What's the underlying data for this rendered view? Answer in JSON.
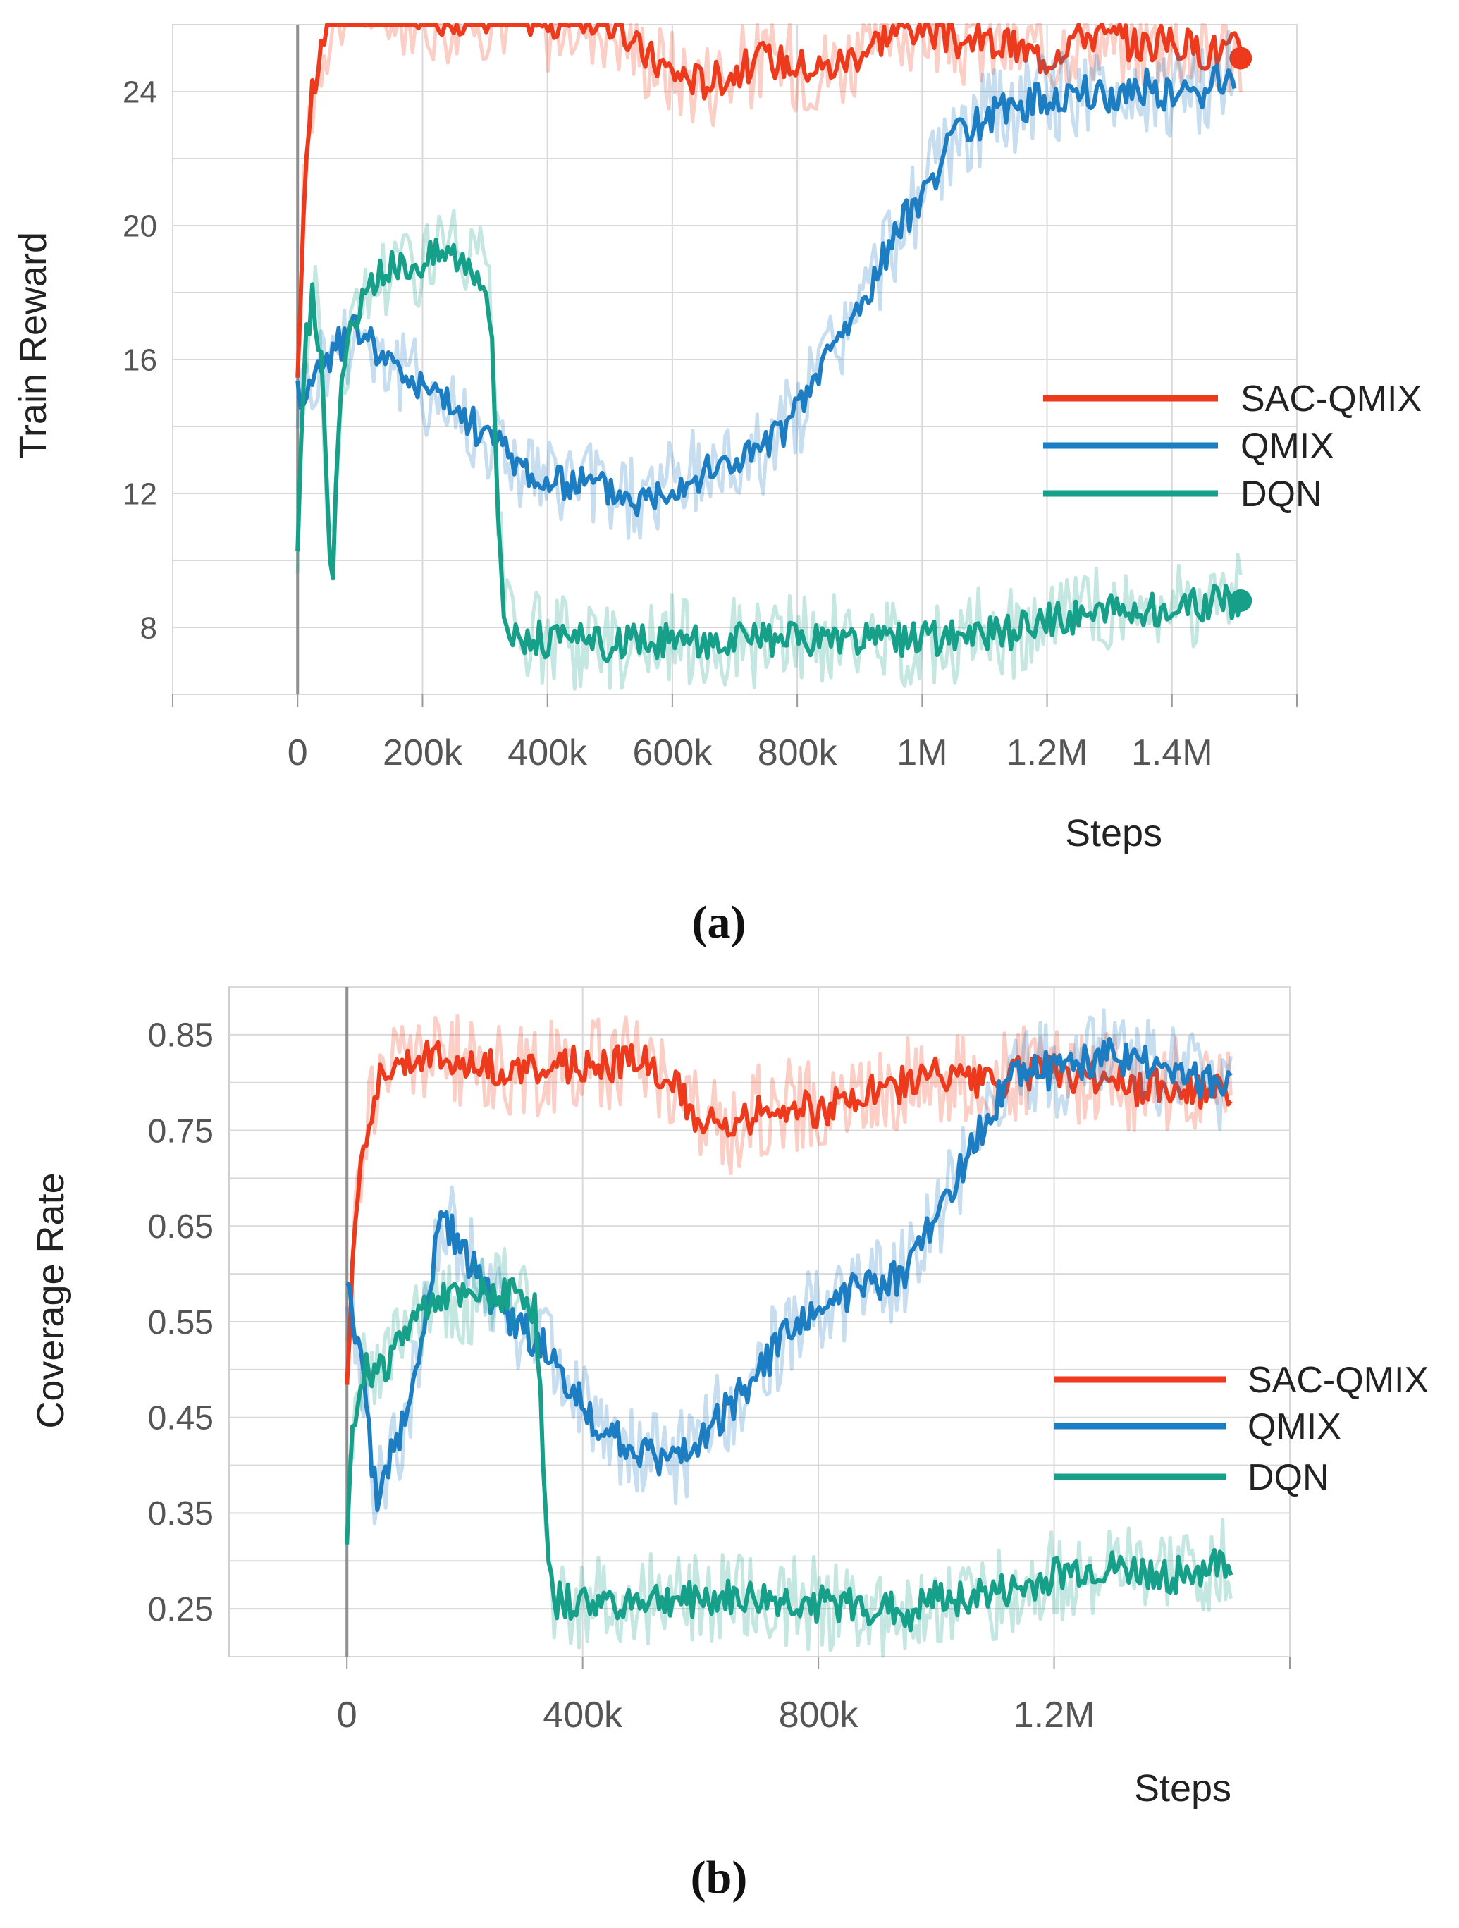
{
  "chart_data": [
    {
      "type": "line",
      "panel": "a",
      "caption": "(a)",
      "xlabel": "Steps",
      "ylabel": "Train Reward",
      "xlim": [
        -200000,
        1600000
      ],
      "ylim": [
        6,
        26
      ],
      "x_ticks": [
        0,
        200000,
        400000,
        600000,
        800000,
        1000000,
        1200000,
        1400000
      ],
      "x_tick_labels": [
        "0",
        "200k",
        "400k",
        "600k",
        "800k",
        "1M",
        "1.2M",
        "1.4M"
      ],
      "y_ticks": [
        8,
        12,
        16,
        20,
        24
      ],
      "y_tick_labels": [
        "8",
        "12",
        "16",
        "20",
        "24"
      ],
      "legend_position": "center-right",
      "series": [
        {
          "name": "SAC-QMIX",
          "color": "#ee3a1c",
          "x": [
            0,
            10000,
            20000,
            40000,
            60000,
            100000,
            150000,
            200000,
            250000,
            300000,
            350000,
            400000,
            450000,
            500000,
            550000,
            600000,
            650000,
            700000,
            750000,
            800000,
            850000,
            900000,
            950000,
            1000000,
            1050000,
            1100000,
            1150000,
            1200000,
            1250000,
            1300000,
            1350000,
            1400000,
            1450000,
            1500000,
            1510000
          ],
          "y": [
            15,
            21,
            23.5,
            25.5,
            26.5,
            26.8,
            26.5,
            26.3,
            26.2,
            26.3,
            26.4,
            26,
            26.2,
            26.1,
            25.2,
            24.6,
            24.3,
            24.6,
            25,
            24.8,
            24.7,
            25.2,
            25.8,
            26,
            25.5,
            25.5,
            25.3,
            25,
            25.8,
            25.6,
            25.4,
            25.5,
            25.2,
            25.3,
            25
          ]
        },
        {
          "name": "QMIX",
          "color": "#1d7dc2",
          "x": [
            0,
            20000,
            40000,
            70000,
            100000,
            150000,
            200000,
            250000,
            300000,
            350000,
            400000,
            450000,
            500000,
            550000,
            600000,
            650000,
            700000,
            750000,
            800000,
            830000,
            860000,
            900000,
            950000,
            1000000,
            1050000,
            1100000,
            1150000,
            1200000,
            1250000,
            1300000,
            1350000,
            1400000,
            1450000,
            1500000
          ],
          "y": [
            15,
            15.2,
            16,
            16.5,
            17,
            15.8,
            15.2,
            14.5,
            13.8,
            13,
            12.2,
            12.4,
            12.1,
            11.8,
            12.3,
            12.6,
            13,
            13.4,
            14.4,
            15.5,
            16.5,
            17.5,
            19.5,
            21,
            22.5,
            23.2,
            23.6,
            23.8,
            24,
            23.8,
            24.2,
            23.9,
            24,
            24.5
          ]
        },
        {
          "name": "DQN",
          "color": "#16a08a",
          "x": [
            0,
            10000,
            25000,
            40000,
            55000,
            65000,
            80000,
            100000,
            130000,
            160000,
            200000,
            240000,
            270000,
            300000,
            310000,
            320000,
            330000,
            345000,
            400000,
            500000,
            600000,
            700000,
            800000,
            900000,
            1000000,
            1100000,
            1150000,
            1200000,
            1250000,
            1300000,
            1400000,
            1450000,
            1500000,
            1510000
          ],
          "y": [
            10,
            16,
            18,
            15.5,
            9,
            14,
            16.5,
            17.5,
            18.5,
            18.8,
            19,
            19.3,
            19,
            18.5,
            17,
            12,
            8.5,
            7.8,
            7.6,
            7.5,
            7.6,
            7.6,
            7.6,
            7.6,
            7.6,
            7.8,
            7.9,
            8.2,
            8.4,
            8.5,
            8.6,
            8.7,
            8.8,
            8.8
          ]
        }
      ]
    },
    {
      "type": "line",
      "panel": "b",
      "caption": "(b)",
      "xlabel": "Steps",
      "ylabel": "Coverage Rate",
      "xlim": [
        -200000,
        1600000
      ],
      "ylim": [
        0.2,
        0.9
      ],
      "x_ticks": [
        0,
        400000,
        800000,
        1200000
      ],
      "x_tick_labels": [
        "0",
        "400k",
        "800k",
        "1.2M"
      ],
      "y_ticks": [
        0.25,
        0.35,
        0.45,
        0.55,
        0.65,
        0.75,
        0.85
      ],
      "y_tick_labels": [
        "0.25",
        "0.35",
        "0.45",
        "0.55",
        "0.65",
        "0.75",
        "0.85"
      ],
      "legend_position": "center-right",
      "series": [
        {
          "name": "SAC-QMIX",
          "color": "#ee3a1c",
          "x": [
            0,
            10000,
            25000,
            50000,
            80000,
            120000,
            200000,
            300000,
            400000,
            450000,
            500000,
            550000,
            600000,
            650000,
            700000,
            750000,
            800000,
            850000,
            900000,
            950000,
            1000000,
            1050000,
            1100000,
            1150000,
            1200000,
            1250000,
            1300000,
            1350000,
            1400000,
            1450000,
            1500000
          ],
          "y": [
            0.49,
            0.62,
            0.73,
            0.8,
            0.82,
            0.83,
            0.82,
            0.81,
            0.82,
            0.82,
            0.83,
            0.8,
            0.76,
            0.75,
            0.77,
            0.78,
            0.77,
            0.78,
            0.79,
            0.8,
            0.81,
            0.8,
            0.8,
            0.81,
            0.81,
            0.8,
            0.81,
            0.79,
            0.8,
            0.79,
            0.79
          ]
        },
        {
          "name": "QMIX",
          "color": "#1d7dc2",
          "x": [
            0,
            10000,
            30000,
            50000,
            70000,
            100000,
            130000,
            160000,
            200000,
            250000,
            300000,
            350000,
            400000,
            450000,
            500000,
            550000,
            600000,
            650000,
            700000,
            750000,
            800000,
            850000,
            900000,
            950000,
            1000000,
            1050000,
            1100000,
            1150000,
            1200000,
            1250000,
            1300000,
            1350000,
            1400000,
            1450000,
            1500000
          ],
          "y": [
            0.6,
            0.55,
            0.48,
            0.36,
            0.4,
            0.45,
            0.55,
            0.66,
            0.62,
            0.57,
            0.54,
            0.52,
            0.46,
            0.43,
            0.41,
            0.4,
            0.43,
            0.46,
            0.5,
            0.54,
            0.56,
            0.58,
            0.59,
            0.6,
            0.66,
            0.72,
            0.78,
            0.82,
            0.81,
            0.82,
            0.83,
            0.82,
            0.81,
            0.8,
            0.8
          ]
        },
        {
          "name": "DQN",
          "color": "#16a08a",
          "x": [
            0,
            10000,
            30000,
            60000,
            100000,
            150000,
            200000,
            250000,
            300000,
            320000,
            330000,
            340000,
            350000,
            400000,
            500000,
            600000,
            700000,
            800000,
            900000,
            950000,
            1000000,
            1100000,
            1150000,
            1200000,
            1250000,
            1300000,
            1400000,
            1450000,
            1500000
          ],
          "y": [
            0.33,
            0.45,
            0.5,
            0.5,
            0.54,
            0.58,
            0.57,
            0.58,
            0.58,
            0.56,
            0.45,
            0.3,
            0.26,
            0.255,
            0.26,
            0.26,
            0.26,
            0.255,
            0.25,
            0.245,
            0.26,
            0.265,
            0.27,
            0.285,
            0.29,
            0.29,
            0.285,
            0.29,
            0.3
          ]
        }
      ]
    }
  ]
}
